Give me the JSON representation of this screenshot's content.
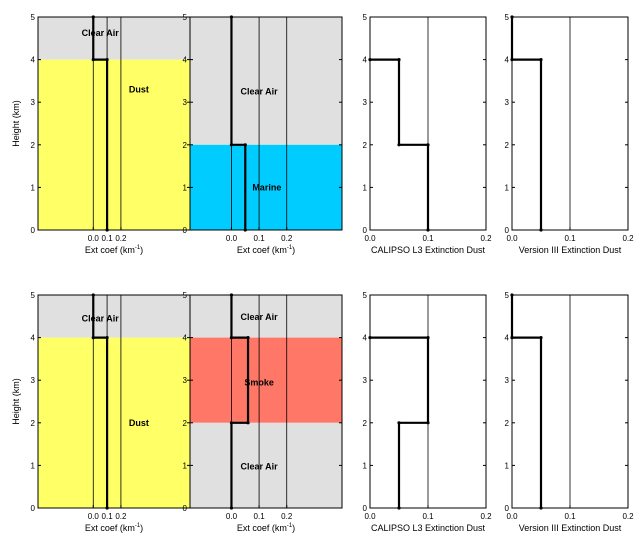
{
  "chart_data": [
    {
      "type": "line",
      "ylabel": "Height (km)",
      "xlabel_main": "Ext coef (km",
      "xlabel_sup": "-1",
      "xlabel_tail": ")",
      "xlim": [
        -0.4,
        0.7
      ],
      "ylim": [
        0,
        5
      ],
      "xticks": [
        "0.0",
        "0.1",
        "0.2"
      ],
      "yticks": [
        "0",
        "1",
        "2",
        "3",
        "4",
        "5"
      ],
      "regions": [
        {
          "label": "Clear Air",
          "ymin": 4,
          "ymax": 5,
          "color": "#e0e0e0",
          "label_x": 0.05,
          "label_y": 4.62
        },
        {
          "label": "Dust",
          "ymin": 0,
          "ymax": 4,
          "color": "#ffff66",
          "label_x": 0.33,
          "label_y": 3.3
        }
      ],
      "profile": [
        {
          "x": 0.0,
          "y": 5
        },
        {
          "x": 0.0,
          "y": 4
        },
        {
          "x": 0.1,
          "y": 4
        },
        {
          "x": 0.1,
          "y": 0
        }
      ]
    },
    {
      "type": "line",
      "xlabel_main": "Ext coef (km",
      "xlabel_sup": "-1",
      "xlabel_tail": ")",
      "xlim": [
        -0.15,
        0.4
      ],
      "ylim": [
        0,
        5
      ],
      "xticks": [
        "0.0",
        "0.1",
        "0.2"
      ],
      "yticks": [
        "0",
        "1",
        "2",
        "3",
        "4",
        "5"
      ],
      "regions": [
        {
          "label": "Clear Air",
          "ymin": 2,
          "ymax": 5,
          "color": "#e0e0e0",
          "label_x": 0.1,
          "label_y": 3.25
        },
        {
          "label": "Marine",
          "ymin": 0,
          "ymax": 2,
          "color": "#00ccff",
          "label_x": 0.128,
          "label_y": 1.0
        }
      ],
      "profile": [
        {
          "x": 0.0,
          "y": 5
        },
        {
          "x": 0.0,
          "y": 2
        },
        {
          "x": 0.05,
          "y": 2
        },
        {
          "x": 0.05,
          "y": 0
        }
      ]
    },
    {
      "type": "line",
      "xlabel": "CALIPSO L3 Extinction Dust",
      "xlim": [
        0,
        0.2
      ],
      "ylim": [
        0,
        5
      ],
      "xticks": [
        "0.0",
        "0.1",
        "0.2"
      ],
      "yticks": [
        "0",
        "1",
        "2",
        "3",
        "4",
        "5"
      ],
      "profile": [
        {
          "x": 0.0,
          "y": 4
        },
        {
          "x": 0.05,
          "y": 4
        },
        {
          "x": 0.05,
          "y": 2
        },
        {
          "x": 0.1,
          "y": 2
        },
        {
          "x": 0.1,
          "y": 0
        }
      ]
    },
    {
      "type": "line",
      "xlabel": "Version III Extinction Dust",
      "xlim": [
        0,
        0.2
      ],
      "ylim": [
        0,
        5
      ],
      "xticks": [
        "0.0",
        "0.1",
        "0.2"
      ],
      "yticks": [
        "0",
        "1",
        "2",
        "3",
        "4",
        "5"
      ],
      "profile": [
        {
          "x": 0.0,
          "y": 5
        },
        {
          "x": 0.0,
          "y": 4
        },
        {
          "x": 0.05,
          "y": 4
        },
        {
          "x": 0.05,
          "y": 0
        }
      ]
    },
    {
      "type": "line",
      "ylabel": "Height (km)",
      "xlabel_main": "Ext coef (km",
      "xlabel_sup": "-1",
      "xlabel_tail": ")",
      "xlim": [
        -0.4,
        0.7
      ],
      "ylim": [
        0,
        5
      ],
      "xticks": [
        "0.0",
        "0.1",
        "0.2"
      ],
      "yticks": [
        "0",
        "1",
        "2",
        "3",
        "4",
        "5"
      ],
      "regions": [
        {
          "label": "Clear Air",
          "ymin": 4,
          "ymax": 5,
          "color": "#e0e0e0",
          "label_x": 0.05,
          "label_y": 4.45
        },
        {
          "label": "Dust",
          "ymin": 0,
          "ymax": 4,
          "color": "#ffff66",
          "label_x": 0.33,
          "label_y": 2.0
        }
      ],
      "profile": [
        {
          "x": 0.0,
          "y": 5
        },
        {
          "x": 0.0,
          "y": 4
        },
        {
          "x": 0.1,
          "y": 4
        },
        {
          "x": 0.1,
          "y": 0
        }
      ]
    },
    {
      "type": "line",
      "xlabel_main": "Ext coef (km",
      "xlabel_sup": "-1",
      "xlabel_tail": ")",
      "xlim": [
        -0.15,
        0.4
      ],
      "ylim": [
        0,
        5
      ],
      "xticks": [
        "0.0",
        "0.1",
        "0.2"
      ],
      "yticks": [
        "0",
        "1",
        "2",
        "3",
        "4",
        "5"
      ],
      "regions": [
        {
          "label": "Clear Air",
          "ymin": 4,
          "ymax": 5,
          "color": "#e0e0e0",
          "label_x": 0.1,
          "label_y": 4.48
        },
        {
          "label": "Smoke",
          "ymin": 2,
          "ymax": 4,
          "color": "#ff7766",
          "label_x": 0.1,
          "label_y": 2.95
        },
        {
          "label": "Clear Air",
          "ymin": 0,
          "ymax": 2,
          "color": "#e0e0e0",
          "label_x": 0.1,
          "label_y": 0.98
        }
      ],
      "profile": [
        {
          "x": 0.0,
          "y": 5
        },
        {
          "x": 0.0,
          "y": 4
        },
        {
          "x": 0.06,
          "y": 4
        },
        {
          "x": 0.06,
          "y": 2
        },
        {
          "x": 0.0,
          "y": 2
        },
        {
          "x": 0.0,
          "y": 0
        }
      ]
    },
    {
      "type": "line",
      "xlabel": "CALIPSO L3 Extinction Dust",
      "xlim": [
        0,
        0.2
      ],
      "ylim": [
        0,
        5
      ],
      "xticks": [
        "0.0",
        "0.1",
        "0.2"
      ],
      "yticks": [
        "0",
        "1",
        "2",
        "3",
        "4",
        "5"
      ],
      "profile": [
        {
          "x": 0.0,
          "y": 4
        },
        {
          "x": 0.1,
          "y": 4
        },
        {
          "x": 0.1,
          "y": 2
        },
        {
          "x": 0.05,
          "y": 2
        },
        {
          "x": 0.05,
          "y": 0
        }
      ]
    },
    {
      "type": "line",
      "xlabel": "Version III Extinction Dust",
      "xlim": [
        0,
        0.2
      ],
      "ylim": [
        0,
        5
      ],
      "xticks": [
        "0.0",
        "0.1",
        "0.2"
      ],
      "yticks": [
        "0",
        "1",
        "2",
        "3",
        "4",
        "5"
      ],
      "profile": [
        {
          "x": 0.0,
          "y": 5
        },
        {
          "x": 0.0,
          "y": 4
        },
        {
          "x": 0.05,
          "y": 4
        },
        {
          "x": 0.05,
          "y": 0
        }
      ]
    }
  ]
}
